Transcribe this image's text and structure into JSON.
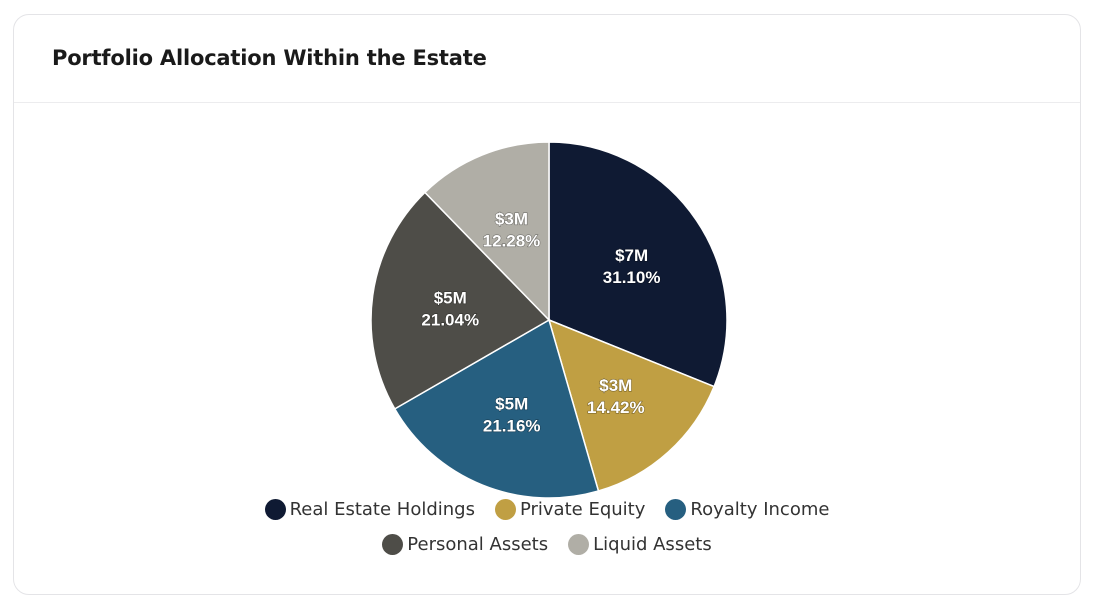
{
  "card": {
    "title": "Portfolio Allocation Within the Estate"
  },
  "chart_data": {
    "type": "pie",
    "title": "Portfolio Allocation Within the Estate",
    "slices": [
      {
        "label": "Real Estate Holdings",
        "value_label": "$7M",
        "percent": 31.1,
        "percent_label": "31.10%",
        "color": "#0f1a33"
      },
      {
        "label": "Private Equity",
        "value_label": "$3M",
        "percent": 14.42,
        "percent_label": "14.42%",
        "color": "#c09f43"
      },
      {
        "label": "Royalty Income",
        "value_label": "$5M",
        "percent": 21.16,
        "percent_label": "21.16%",
        "color": "#265f80"
      },
      {
        "label": "Personal Assets",
        "value_label": "$5M",
        "percent": 21.04,
        "percent_label": "21.04%",
        "color": "#4e4d48"
      },
      {
        "label": "Liquid Assets",
        "value_label": "$3M",
        "percent": 12.28,
        "percent_label": "12.28%",
        "color": "#b0aea6"
      }
    ],
    "legend_position": "bottom",
    "start_angle": "top",
    "direction": "clockwise"
  }
}
